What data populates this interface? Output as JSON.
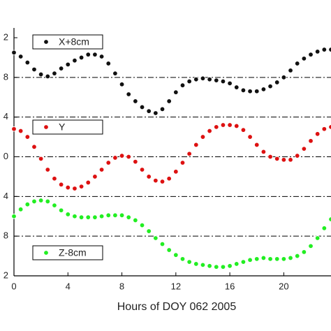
{
  "chart_data": {
    "type": "scatter",
    "xlabel": "Hours of DOY 062 2005",
    "x": [
      0,
      0.5,
      1,
      1.5,
      2,
      2.5,
      3,
      3.5,
      4,
      4.5,
      5,
      5.5,
      6,
      6.5,
      7,
      7.5,
      8,
      8.5,
      9,
      9.5,
      10,
      10.5,
      11,
      11.5,
      12,
      12.5,
      13,
      13.5,
      14,
      14.5,
      15,
      15.5,
      16,
      16.5,
      17,
      17.5,
      18,
      18.5,
      19,
      19.5,
      20,
      20.5,
      21,
      21.5,
      22,
      22.5,
      23,
      23.5
    ],
    "series": [
      {
        "name": "X+8cm",
        "color": "#111111",
        "values": [
          10.5,
          10.1,
          9.5,
          8.8,
          8.3,
          8.1,
          8.4,
          8.9,
          9.3,
          9.7,
          10.0,
          10.3,
          10.3,
          10.1,
          9.4,
          8.4,
          7.3,
          6.3,
          5.6,
          5.0,
          4.6,
          4.4,
          4.8,
          5.6,
          6.5,
          7.2,
          7.6,
          7.8,
          7.9,
          7.8,
          7.7,
          7.6,
          7.4,
          7.0,
          6.7,
          6.6,
          6.6,
          6.8,
          7.1,
          7.5,
          8.0,
          8.7,
          9.4,
          9.9,
          10.3,
          10.6,
          10.8,
          10.8
        ]
      },
      {
        "name": "Y",
        "color": "#dd1111",
        "values": [
          2.8,
          2.6,
          2.0,
          1.0,
          -0.2,
          -1.3,
          -2.2,
          -2.8,
          -3.1,
          -3.2,
          -3.0,
          -2.6,
          -2.0,
          -1.3,
          -0.6,
          -0.1,
          0.1,
          0,
          -0.5,
          -1.3,
          -2.0,
          -2.4,
          -2.5,
          -2.2,
          -1.5,
          -0.6,
          0.3,
          1.2,
          2.0,
          2.6,
          3.0,
          3.2,
          3.2,
          3.1,
          2.7,
          2.0,
          1.2,
          0.5,
          0,
          -0.2,
          -0.3,
          -0.3,
          0.1,
          0.8,
          1.6,
          2.3,
          2.8,
          3.0
        ]
      },
      {
        "name": "Z-8cm",
        "color": "#22ee22",
        "values": [
          -6.0,
          -5.3,
          -4.8,
          -4.5,
          -4.4,
          -4.5,
          -4.9,
          -5.4,
          -5.8,
          -6.0,
          -6.1,
          -6.1,
          -6.1,
          -6.0,
          -5.9,
          -5.9,
          -5.9,
          -6.1,
          -6.4,
          -6.9,
          -7.5,
          -8.2,
          -8.8,
          -9.4,
          -9.9,
          -10.3,
          -10.6,
          -10.8,
          -10.9,
          -11.0,
          -11.1,
          -11.1,
          -11.0,
          -10.8,
          -10.6,
          -10.4,
          -10.3,
          -10.2,
          -10.3,
          -10.3,
          -10.3,
          -10.2,
          -10.0,
          -9.6,
          -9.0,
          -8.2,
          -7.2,
          -6.3
        ]
      }
    ],
    "xlim": [
      0,
      23.5
    ],
    "xticks": [
      0,
      4,
      8,
      12,
      16,
      20
    ],
    "ylim": [
      -12,
      12
    ],
    "yticks": [
      {
        "value": 12,
        "label": "2"
      },
      8,
      4,
      0,
      {
        "value": -4,
        "label": "4"
      },
      {
        "value": -8,
        "label": "8"
      },
      {
        "value": -12,
        "label": "2"
      }
    ],
    "grid": true
  }
}
